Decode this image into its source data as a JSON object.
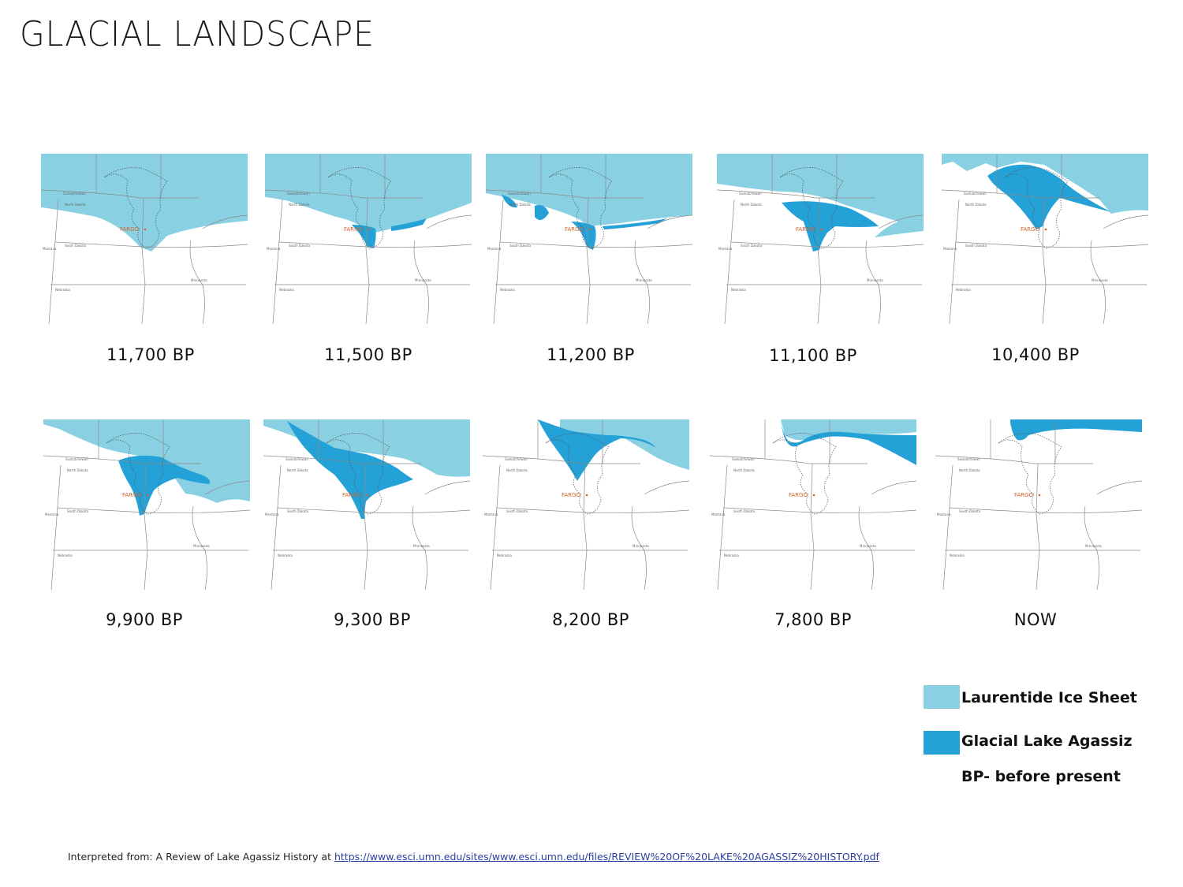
{
  "title": "GLACIAL LANDSCAPE",
  "map_labels": {
    "city": "FARGO",
    "regions": [
      "Saskatchewan",
      "North Dakota",
      "South Dakota",
      "Montana",
      "Nebraska",
      "Minnesota"
    ]
  },
  "panels": [
    {
      "label": "11,700 BP"
    },
    {
      "label": "11,500 BP"
    },
    {
      "label": "11,200 BP"
    },
    {
      "label": "11,100 BP"
    },
    {
      "label": "10,400 BP"
    },
    {
      "label": "9,900 BP"
    },
    {
      "label": "9,300 BP"
    },
    {
      "label": "8,200 BP"
    },
    {
      "label": "7,800 BP"
    },
    {
      "label": "NOW"
    }
  ],
  "legend": {
    "ice_label": "Laurentide Ice Sheet",
    "lake_label": "Glacial Lake Agassiz",
    "bp_note": "BP- before present"
  },
  "colors": {
    "ice": "#8ad0e3",
    "lake": "#24a2d8",
    "boundary": "#8a8a8a",
    "city": "#d2612c"
  },
  "source": {
    "prefix": "Interpreted from: A Review of Lake Agassiz History at ",
    "link": "https://www.esci.umn.edu/sites/www.esci.umn.edu/files/REVIEW%20OF%20LAKE%20AGASSIZ%20HISTORY.pdf"
  }
}
